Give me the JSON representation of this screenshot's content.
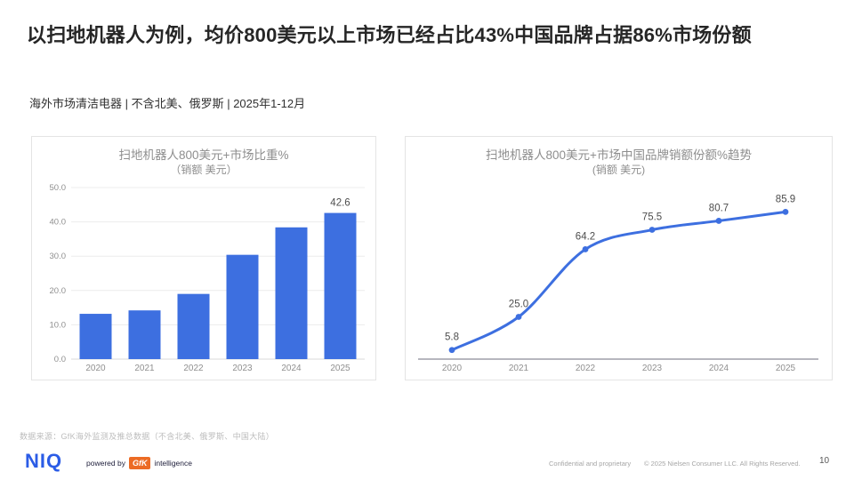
{
  "header": {
    "title": "以扫地机器人为例，均价800美元以上市场已经占比43%中国品牌占据86%市场份额",
    "subtitle": "海外市场清洁电器 | 不含北美、俄罗斯 | 2025年1-12月"
  },
  "chart_data": [
    {
      "type": "bar",
      "title": "扫地机器人800美元+市场比重%",
      "subtitle": "（销额 美元）",
      "categories": [
        "2020",
        "2021",
        "2022",
        "2023",
        "2024",
        "2025"
      ],
      "values": [
        13.2,
        14.2,
        19.0,
        30.4,
        38.4,
        42.6
      ],
      "data_labels": [
        "",
        "",
        "",
        "",
        "",
        "42.6"
      ],
      "ylabel": "",
      "xlabel": "",
      "ylim": [
        0,
        50
      ],
      "yticks": [
        0,
        10,
        20,
        30,
        40,
        50
      ],
      "ytick_labels": [
        "0.0",
        "10.0",
        "20.0",
        "30.0",
        "40.0",
        "50.0"
      ],
      "grid": true,
      "bar_color": "#3d6fe0",
      "label_color": "#4d4d4d",
      "tick_color": "#8f8f8f",
      "grid_color": "#ececec",
      "axis_color": "#d9d9d9"
    },
    {
      "type": "line",
      "title": "扫地机器人800美元+市场中国品牌销额份额%趋势",
      "subtitle": "(销额 美元)",
      "categories": [
        "2020",
        "2021",
        "2022",
        "2023",
        "2024",
        "2025"
      ],
      "values": [
        5.8,
        25.0,
        64.2,
        75.5,
        80.7,
        85.9
      ],
      "data_labels": [
        "5.8",
        "25.0",
        "64.2",
        "75.5",
        "80.7",
        "85.9"
      ],
      "ylabel": "",
      "xlabel": "",
      "ylim": [
        0,
        105
      ],
      "grid": false,
      "legend": "none",
      "line_color": "#3d6fe0",
      "label_color": "#4d4d4d",
      "tick_color": "#8f8f8f",
      "axis_color": "#8a8a96",
      "smooth": true
    }
  ],
  "footer": {
    "source": "数据来源：GfK海外监测及推总数据（不含北美、俄罗斯、中国大陆）",
    "brand": "NIQ",
    "powered_by": "powered by",
    "gfk": "GfK",
    "intelligence": "intelligence",
    "confidential": "Confidential and proprietary",
    "copyright": "© 2025 Nielsen Consumer LLC. All Rights Reserved.",
    "page": "10"
  }
}
